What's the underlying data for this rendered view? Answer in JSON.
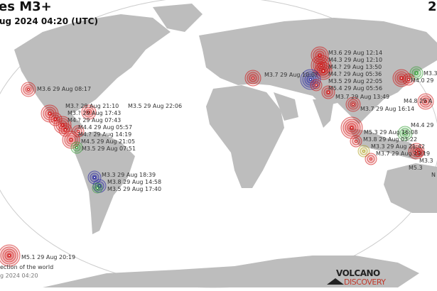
{
  "header": {
    "title": "es M3+",
    "subtitle": "ug 2024 04:20 (UTC)",
    "corner": "2"
  },
  "footer": {
    "caption": "ection of the world",
    "timestamp": "g 2024 04:20"
  },
  "logo": {
    "line1": "VOLCANO",
    "line2": "DISCOVERY"
  },
  "colors": {
    "land": "#bdbdbd",
    "ocean": "#ffffff",
    "red": "#d01010",
    "green": "#2e9e2e",
    "blue": "#2020a0",
    "yellow": "#b0a020"
  },
  "quakes": [
    {
      "label": "M3.6 29 Aug 08:17",
      "color": "red"
    },
    {
      "label": "M3.? 29 Aug 21:10",
      "color": "red"
    },
    {
      "label": "M3.5 29 Aug 22:06",
      "color": "red"
    },
    {
      "label": "M3.? 29 Aug 17:43",
      "color": "red"
    },
    {
      "label": "M4.? 29 Aug 07:43",
      "color": "red"
    },
    {
      "label": "M4.4 29 Aug 05:57",
      "color": "red"
    },
    {
      "label": "M4.? 29 Aug 14:19",
      "color": "red"
    },
    {
      "label": "M4.5 29 Aug 21:05",
      "color": "red"
    },
    {
      "label": "M3.5 29 Aug 07:51",
      "color": "green"
    },
    {
      "label": "M3.3 29 Aug 18:39",
      "color": "blue"
    },
    {
      "label": "M3.8 29 Aug 14:58",
      "color": "blue"
    },
    {
      "label": "M3.5 29 Aug 17:40",
      "color": "green"
    },
    {
      "label": "M5.1 29 Aug 20:19",
      "color": "red"
    },
    {
      "label": "M3.7 29 Aug 10:0?",
      "color": "red"
    },
    {
      "label": "M3.6 29 Aug 12:14",
      "color": "red"
    },
    {
      "label": "M4.3 29 Aug 12:10",
      "color": "red"
    },
    {
      "label": "M4.? 29 Aug 13:50",
      "color": "red"
    },
    {
      "label": "M4.? 29 Aug 05:36",
      "color": "red"
    },
    {
      "label": "M3.5 29 Aug 22:05",
      "color": "blue"
    },
    {
      "label": "M5.4 29 Aug 05:56",
      "color": "red"
    },
    {
      "label": "M3.7 29 Aug 13:49",
      "color": "red"
    },
    {
      "label": "M3.7 29 Aug 16:14",
      "color": "red"
    },
    {
      "label": "M3.3",
      "color": "green"
    },
    {
      "label": "M4.0 29",
      "color": "red"
    },
    {
      "label": "M4.8 29 A",
      "color": "red"
    },
    {
      "label": "M5.3 29 Aug 16:08",
      "color": "green"
    },
    {
      "label": "M3.8 29 Aug 03:22",
      "color": "red"
    },
    {
      "label": "M4.4 29",
      "color": "red"
    },
    {
      "label": "M3.3 29 Aug 21:42",
      "color": "yellow"
    },
    {
      "label": "M3.3",
      "color": "red"
    },
    {
      "label": "M3.7 29 Aug 23:19",
      "color": "red"
    },
    {
      "label": "M5.3",
      "color": "red"
    },
    {
      "label": "N",
      "color": "red"
    }
  ]
}
